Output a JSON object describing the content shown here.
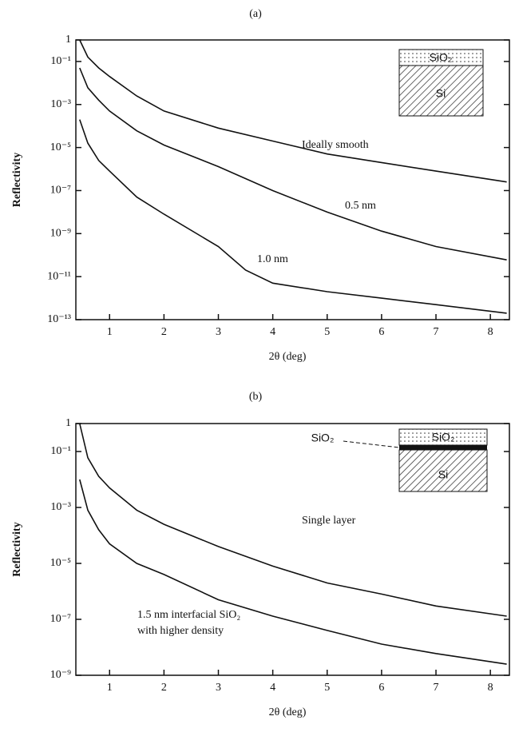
{
  "chart_data": [
    {
      "type": "line",
      "title": "(a)",
      "xlabel": "2θ (deg)",
      "ylabel": "Reflectivity",
      "log_y": true,
      "color": "#111111",
      "xlim": [
        0.38,
        8.35
      ],
      "xticks": [
        1,
        2,
        3,
        4,
        5,
        6,
        7,
        8
      ],
      "ylim": [
        1e-13,
        1
      ],
      "yticks": [
        1,
        {
          "value": 0.1,
          "label": "10⁻¹"
        },
        {
          "value": 0.001,
          "label": "10⁻³"
        },
        {
          "value": 1e-05,
          "label": "10⁻⁵"
        },
        {
          "value": 1e-07,
          "label": "10⁻⁷"
        },
        {
          "value": 1e-09,
          "label": "10⁻⁹"
        },
        {
          "value": 1e-11,
          "label": "10⁻¹¹"
        },
        {
          "value": 1e-13,
          "label": "10⁻¹³"
        }
      ],
      "annotations": [
        "Ideally smooth",
        "0.5 nm",
        "1.0 nm"
      ],
      "inset_labels": [
        "SiO₂",
        "Si"
      ],
      "series": [
        {
          "x": [
            0.45,
            0.6,
            0.8,
            1,
            1.5,
            2,
            3,
            4,
            5,
            6,
            7,
            8.3
          ],
          "values": [
            1,
            0.16,
            0.05,
            0.02,
            0.0025,
            0.0005,
            8e-05,
            2e-05,
            5e-06,
            2e-06,
            8e-07,
            2.5e-07
          ]
        },
        {
          "x": [
            0.45,
            0.6,
            0.8,
            1,
            1.5,
            2,
            3,
            4,
            5,
            6,
            7,
            8.3
          ],
          "values": [
            0.05,
            0.006,
            0.0016,
            0.0005,
            6e-05,
            1.3e-05,
            1.3e-06,
            1e-07,
            1e-08,
            1.3e-09,
            2.5e-10,
            6e-11
          ]
        },
        {
          "x": [
            0.45,
            0.6,
            0.8,
            1,
            1.5,
            2,
            3,
            3.5,
            4,
            5,
            6,
            7,
            8.3
          ],
          "values": [
            0.0002,
            1.6e-05,
            2.5e-06,
            8e-07,
            5e-08,
            8e-09,
            2.5e-10,
            2e-11,
            5e-12,
            2e-12,
            1e-12,
            5e-13,
            2e-13
          ]
        }
      ]
    },
    {
      "type": "line",
      "title": "(b)",
      "xlabel": "2θ (deg)",
      "ylabel": "Reflectivity",
      "log_y": true,
      "color": "#111111",
      "xlim": [
        0.38,
        8.35
      ],
      "xticks": [
        1,
        2,
        3,
        4,
        5,
        6,
        7,
        8
      ],
      "ylim": [
        1e-09,
        1
      ],
      "yticks": [
        1,
        {
          "value": 0.1,
          "label": "10⁻¹"
        },
        {
          "value": 0.001,
          "label": "10⁻³"
        },
        {
          "value": 1e-05,
          "label": "10⁻⁵"
        },
        {
          "value": 1e-07,
          "label": "10⁻⁷"
        },
        {
          "value": 1e-09,
          "label": "10⁻⁹"
        }
      ],
      "annotations": [
        "Single layer",
        "1.5 nm interfacial SiO₂",
        "with higher density"
      ],
      "inset_labels": [
        "SiO₂",
        "SiO₂",
        "Si"
      ],
      "series": [
        {
          "x": [
            0.45,
            0.6,
            0.8,
            1,
            1.5,
            2,
            3,
            4,
            5,
            6,
            7,
            8.3
          ],
          "values": [
            1,
            0.06,
            0.013,
            0.005,
            0.0008,
            0.00025,
            4e-05,
            8e-06,
            2e-06,
            8e-07,
            3e-07,
            1.3e-07
          ]
        },
        {
          "x": [
            0.45,
            0.6,
            0.8,
            1,
            1.5,
            2,
            3,
            4,
            5,
            6,
            7,
            8.3
          ],
          "values": [
            0.01,
            0.0008,
            0.00016,
            5e-05,
            1e-05,
            4e-06,
            5e-07,
            1.3e-07,
            4e-08,
            1.3e-08,
            6e-09,
            2.5e-09
          ]
        }
      ]
    }
  ]
}
